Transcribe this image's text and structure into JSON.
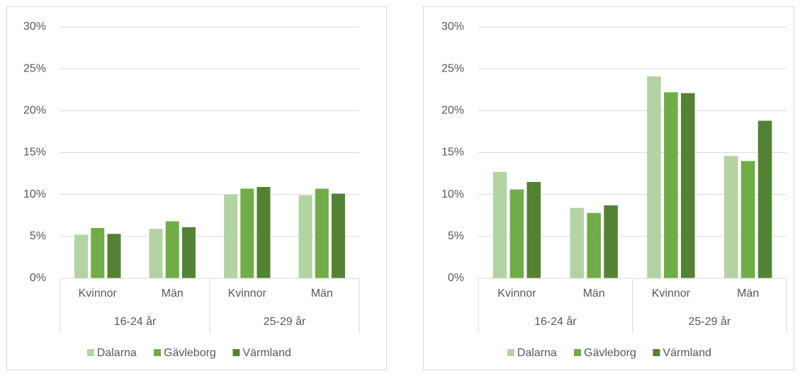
{
  "chart_data": [
    {
      "type": "bar",
      "category_groups": [
        {
          "name": "16-24 år",
          "categories": [
            "Kvinnor",
            "Män"
          ]
        },
        {
          "name": "25-29 år",
          "categories": [
            "Kvinnor",
            "Män"
          ]
        }
      ],
      "series": [
        {
          "name": "Dalarna",
          "color": "#b4d3a3",
          "values": [
            5.2,
            5.9,
            10.0,
            9.9
          ]
        },
        {
          "name": "Gävleborg",
          "color": "#70ad47",
          "values": [
            6.0,
            6.8,
            10.7,
            10.7
          ]
        },
        {
          "name": "Värmland",
          "color": "#548235",
          "values": [
            5.3,
            6.1,
            10.9,
            10.1
          ]
        }
      ],
      "ylim": [
        0,
        30
      ],
      "yticks": [
        {
          "value": 0,
          "label": "0%"
        },
        {
          "value": 5,
          "label": "5%"
        },
        {
          "value": 10,
          "label": "10%"
        },
        {
          "value": 15,
          "label": "15%"
        },
        {
          "value": 20,
          "label": "20%"
        },
        {
          "value": 25,
          "label": "25%"
        },
        {
          "value": 30,
          "label": "30%"
        }
      ],
      "grid": true,
      "legend": "bottom"
    },
    {
      "type": "bar",
      "category_groups": [
        {
          "name": "16-24 år",
          "categories": [
            "Kvinnor",
            "Män"
          ]
        },
        {
          "name": "25-29 år",
          "categories": [
            "Kvinnor",
            "Män"
          ]
        }
      ],
      "series": [
        {
          "name": "Dalarna",
          "color": "#b4d3a3",
          "values": [
            12.7,
            8.4,
            24.1,
            14.6
          ]
        },
        {
          "name": "Gävleborg",
          "color": "#70ad47",
          "values": [
            10.6,
            7.8,
            22.2,
            14.0
          ]
        },
        {
          "name": "Värmland",
          "color": "#548235",
          "values": [
            11.5,
            8.7,
            22.1,
            18.8
          ]
        }
      ],
      "ylim": [
        0,
        30
      ],
      "yticks": [
        {
          "value": 0,
          "label": "0%"
        },
        {
          "value": 5,
          "label": "5%"
        },
        {
          "value": 10,
          "label": "10%"
        },
        {
          "value": 15,
          "label": "15%"
        },
        {
          "value": 20,
          "label": "20%"
        },
        {
          "value": 25,
          "label": "25%"
        },
        {
          "value": 30,
          "label": "30%"
        }
      ],
      "grid": true,
      "legend": "bottom"
    }
  ]
}
